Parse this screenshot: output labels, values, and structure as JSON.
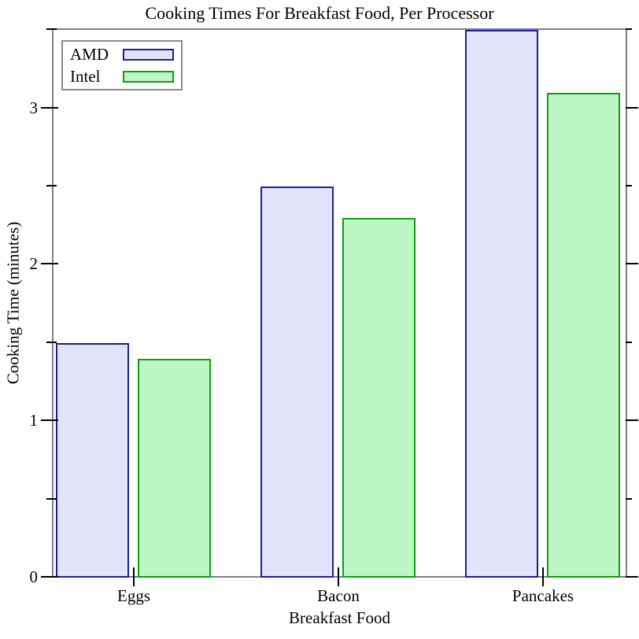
{
  "chart_data": {
    "type": "bar",
    "title": "Cooking Times For Breakfast Food, Per Processor",
    "xlabel": "Breakfast Food",
    "ylabel": "Cooking Time (minutes)",
    "categories": [
      "Eggs",
      "Bacon",
      "Pancakes"
    ],
    "series": [
      {
        "name": "AMD",
        "values": [
          1.5,
          2.5,
          3.5
        ],
        "fill_color": "#e2e5fa",
        "line_color": "#1c1ca8"
      },
      {
        "name": "Intel",
        "values": [
          1.4,
          2.3,
          3.1
        ],
        "fill_color": "#bdf7c5",
        "line_color": "#0da00d"
      }
    ],
    "y_ticks": [
      0,
      1,
      2,
      3
    ],
    "y_tick_labels": [
      "0",
      "1",
      "2",
      "3"
    ],
    "y_minor_ticks": [
      0.5,
      1.5,
      2.5,
      3.5
    ],
    "ylim": [
      0,
      3.5
    ],
    "grid": "off",
    "legend_position": "top-left",
    "frame_color": "#808080",
    "tick_color": "#000000",
    "background_color": "#ffffff"
  }
}
